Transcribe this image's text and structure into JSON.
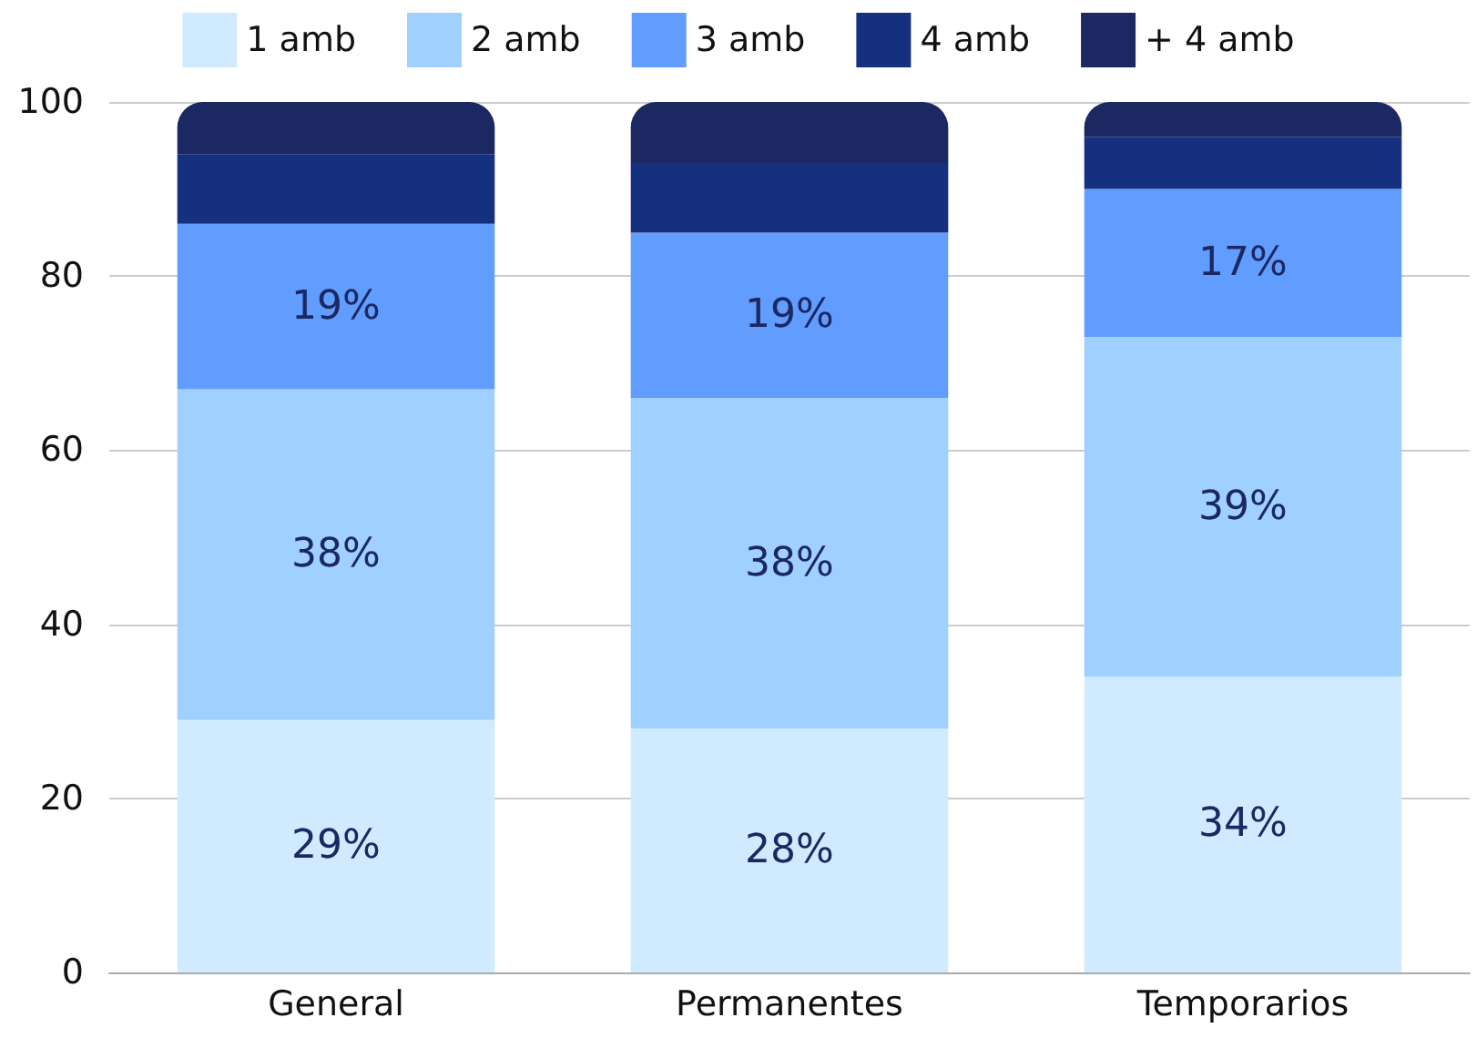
{
  "chart_data": {
    "type": "bar",
    "stacked": true,
    "categories": [
      "General",
      "Permanentes",
      "Temporarios"
    ],
    "series": [
      {
        "name": "1 amb",
        "color": "#d0ebff",
        "values": [
          29,
          28,
          34
        ],
        "value_labels": [
          "29%",
          "28%",
          "34%"
        ]
      },
      {
        "name": "2 amb",
        "color": "#a0d0ff",
        "values": [
          38,
          38,
          39
        ],
        "value_labels": [
          "38%",
          "38%",
          "39%"
        ]
      },
      {
        "name": "3 amb",
        "color": "#619dff",
        "values": [
          19,
          19,
          17
        ],
        "value_labels": [
          "19%",
          "19%",
          "17%"
        ]
      },
      {
        "name": "4 amb",
        "color": "#163080",
        "values": [
          8,
          8,
          6
        ]
      },
      {
        "name": "+ 4 amb",
        "color": "#1b2862",
        "values": [
          6,
          7,
          4
        ]
      }
    ],
    "ylim": [
      0,
      100
    ],
    "yticks": [
      0,
      20,
      40,
      60,
      80,
      100
    ],
    "grid": "y",
    "legend": "top"
  }
}
